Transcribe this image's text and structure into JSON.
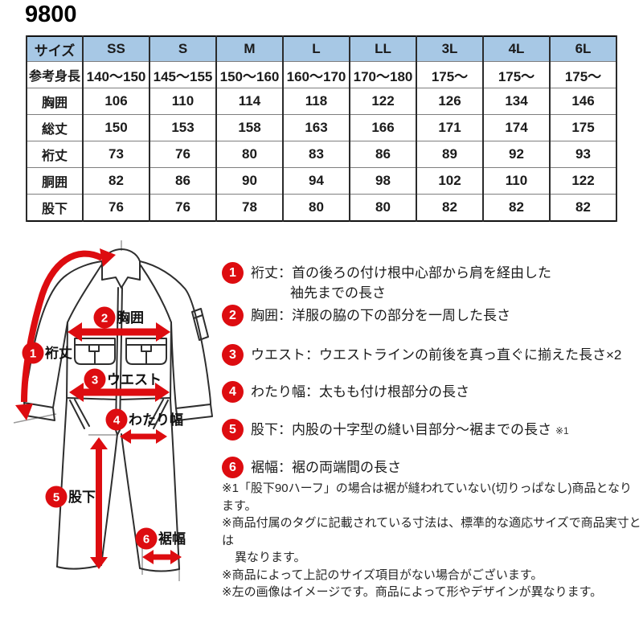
{
  "title": "9800",
  "colors": {
    "accent_red": "#dd0c10",
    "table_header_bg": "#a7c8e5",
    "outline": "#2e2e2e"
  },
  "size_table": {
    "columns": [
      "サイズ",
      "SS",
      "S",
      "M",
      "L",
      "LL",
      "3L",
      "4L",
      "6L"
    ],
    "rows": [
      {
        "label": "参考身長",
        "values": [
          "140〜150",
          "145〜155",
          "150〜160",
          "160〜170",
          "170〜180",
          "175〜",
          "175〜",
          "175〜"
        ]
      },
      {
        "label": "胸囲",
        "values": [
          "106",
          "110",
          "114",
          "118",
          "122",
          "126",
          "134",
          "146"
        ]
      },
      {
        "label": "総丈",
        "values": [
          "150",
          "153",
          "158",
          "163",
          "166",
          "171",
          "174",
          "175"
        ]
      },
      {
        "label": "裄丈",
        "values": [
          "73",
          "76",
          "80",
          "83",
          "86",
          "89",
          "92",
          "93"
        ]
      },
      {
        "label": "胴囲",
        "values": [
          "82",
          "86",
          "90",
          "94",
          "98",
          "102",
          "110",
          "122"
        ]
      },
      {
        "label": "股下",
        "values": [
          "76",
          "76",
          "78",
          "80",
          "80",
          "82",
          "82",
          "82"
        ]
      }
    ]
  },
  "diagram": {
    "callouts": [
      {
        "num": "1",
        "label": "裄丈"
      },
      {
        "num": "2",
        "label": "胸囲"
      },
      {
        "num": "3",
        "label": "ウエスト"
      },
      {
        "num": "4",
        "label": "わたり幅"
      },
      {
        "num": "5",
        "label": "股下"
      },
      {
        "num": "6",
        "label": "裾幅"
      }
    ]
  },
  "legend": [
    {
      "num": "1",
      "line1": "裄丈：首の後ろの付け根中心部から肩を経由した",
      "line2": "袖先までの長さ"
    },
    {
      "num": "2",
      "line1": "胸囲：洋服の脇の下の部分を一周した長さ"
    },
    {
      "num": "3",
      "line1": "ウエスト：ウエストラインの前後を真っ直ぐに揃えた長さ×2"
    },
    {
      "num": "4",
      "line1": "わたり幅：太もも付け根部分の長さ"
    },
    {
      "num": "5",
      "line1": "股下：内股の十字型の縫い目部分〜裾までの長さ",
      "suffix": "※1"
    },
    {
      "num": "6",
      "line1": "裾幅：裾の両端間の長さ"
    }
  ],
  "notes": [
    {
      "text": "※1「股下90ハーフ」の場合は裾が縫われていない(切りっぱなし)商品となります。",
      "indent": false
    },
    {
      "text": "※商品付属のタグに記載されている寸法は、標準的な適応サイズで商品実寸とは",
      "indent": false
    },
    {
      "text": "異なります。",
      "indent": true
    },
    {
      "text": "※商品によって上記のサイズ項目がない場合がございます。",
      "indent": false
    },
    {
      "text": "※左の画像はイメージです。商品によって形やデザインが異なります。",
      "indent": false
    }
  ]
}
